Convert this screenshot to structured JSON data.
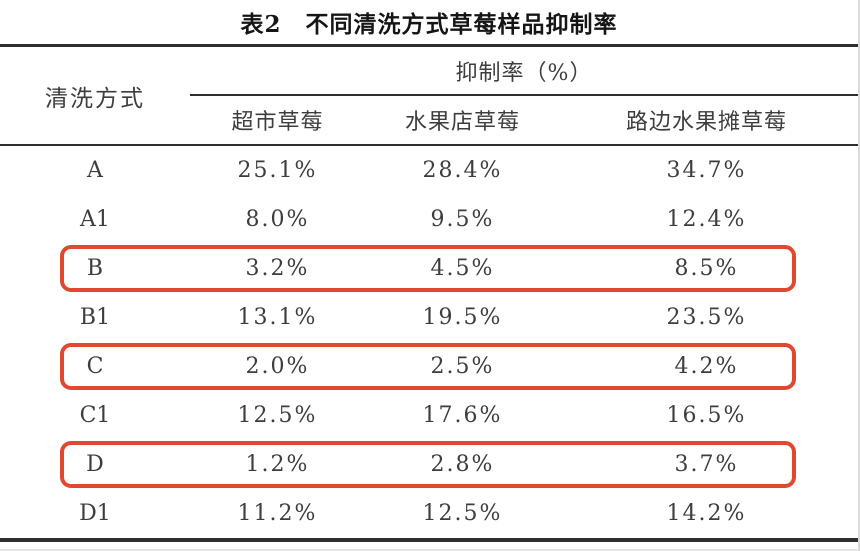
{
  "table": {
    "title": "表2　不同清洗方式草莓样品抑制率",
    "row_group_header": "清洗方式",
    "span_header": "抑制率（%）",
    "sub_headers": [
      "超市草莓",
      "水果店草莓",
      "路边水果摊草莓"
    ],
    "rows": [
      {
        "label": "A",
        "values": [
          "25.1%",
          "28.4%",
          "34.7%"
        ],
        "highlighted": false
      },
      {
        "label": "A1",
        "values": [
          "8.0%",
          "9.5%",
          "12.4%"
        ],
        "highlighted": false
      },
      {
        "label": "B",
        "values": [
          "3.2%",
          "4.5%",
          "8.5%"
        ],
        "highlighted": true
      },
      {
        "label": "B1",
        "values": [
          "13.1%",
          "19.5%",
          "23.5%"
        ],
        "highlighted": false
      },
      {
        "label": "C",
        "values": [
          "2.0%",
          "2.5%",
          "4.2%"
        ],
        "highlighted": true
      },
      {
        "label": "C1",
        "values": [
          "12.5%",
          "17.6%",
          "16.5%"
        ],
        "highlighted": false
      },
      {
        "label": "D",
        "values": [
          "1.2%",
          "2.8%",
          "3.7%"
        ],
        "highlighted": true
      },
      {
        "label": "D1",
        "values": [
          "11.2%",
          "12.5%",
          "14.2%"
        ],
        "highlighted": false
      }
    ],
    "highlight_color": "#e0492f",
    "line_color": "#2f2f2f",
    "text_color": "#3d3d3d"
  }
}
